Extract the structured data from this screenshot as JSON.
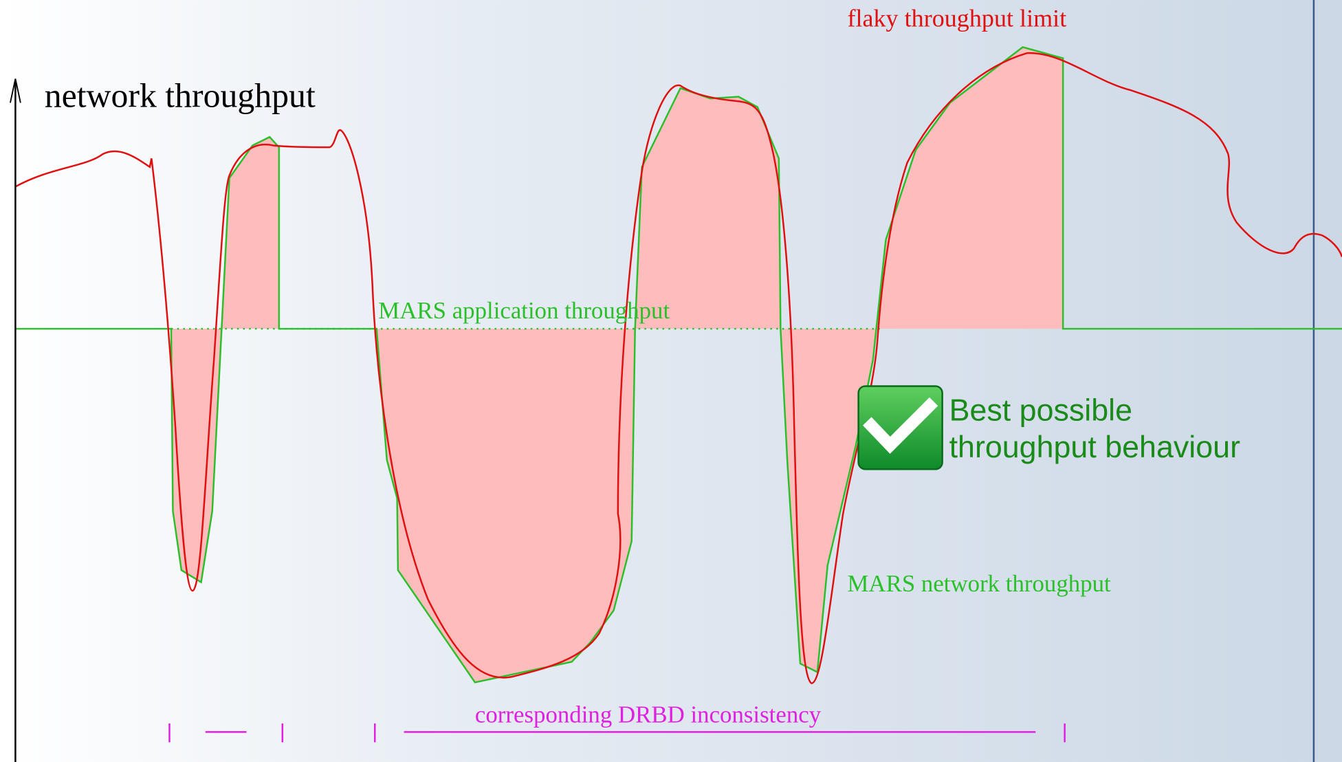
{
  "axis_label": "network throughput",
  "labels": {
    "flaky_limit": "flaky throughput limit",
    "application": "MARS application throughput",
    "network": "MARS network throughput",
    "inconsistency": "corresponding DRBD inconsistency"
  },
  "callout": {
    "line1": "Best possible",
    "line2": "throughput behaviour"
  }
}
